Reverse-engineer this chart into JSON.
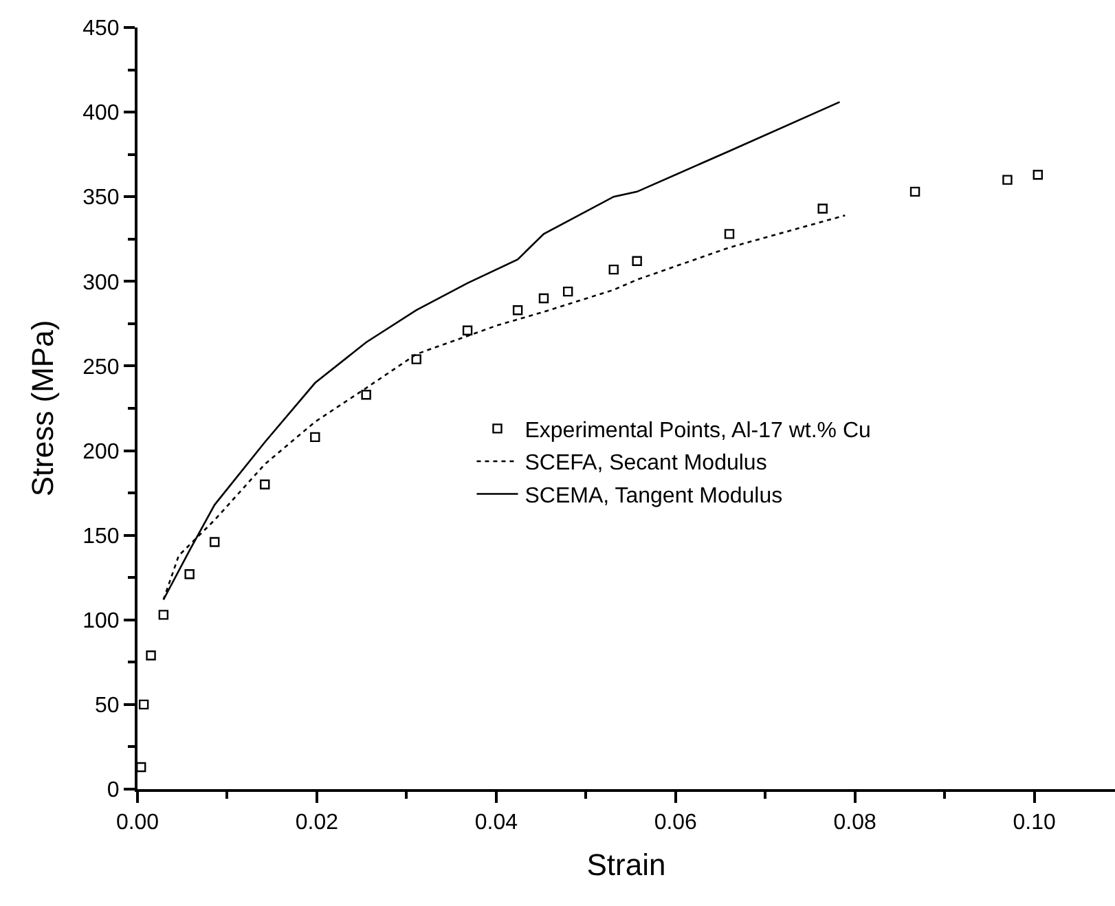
{
  "chart_data": {
    "type": "line",
    "xlabel": "Strain",
    "ylabel": "Stress (MPa)",
    "xlim": [
      0,
      0.109
    ],
    "ylim": [
      0,
      450
    ],
    "xticks": [
      {
        "value": 0,
        "label": "0.00"
      },
      {
        "value": 0.02,
        "label": "0.02"
      },
      {
        "value": 0.04,
        "label": "0.04"
      },
      {
        "value": 0.06,
        "label": "0.06"
      },
      {
        "value": 0.08,
        "label": "0.08"
      },
      {
        "value": 0.1,
        "label": "0.10"
      }
    ],
    "yticks": [
      0,
      50,
      100,
      150,
      200,
      250,
      300,
      350,
      400,
      450
    ],
    "legend": "right",
    "series": [
      {
        "name": "Experimental Points, Al-17 wt.% Cu",
        "type": "scatter",
        "marker": "square",
        "color": "#000000",
        "x": [
          0.0004,
          0.0007,
          0.0015,
          0.0029,
          0.0058,
          0.0086,
          0.0142,
          0.0198,
          0.0255,
          0.0311,
          0.0368,
          0.0424,
          0.0453,
          0.048,
          0.0531,
          0.0557,
          0.066,
          0.0764,
          0.0867,
          0.097,
          0.1004
        ],
        "values": [
          13,
          50,
          79,
          103,
          127,
          146,
          180,
          208,
          233,
          254,
          271,
          283,
          290,
          294,
          307,
          312,
          328,
          343,
          353,
          360,
          363
        ]
      },
      {
        "name": "SCEFA, Secant Modulus",
        "line_style": "dotted",
        "color": "#000000",
        "x": [
          0.0029,
          0.0046,
          0.0086,
          0.0142,
          0.0198,
          0.0255,
          0.0311,
          0.0401,
          0.0453,
          0.0531,
          0.0557,
          0.066,
          0.0789
        ],
        "values": [
          112,
          138,
          159,
          192,
          217,
          237,
          257,
          274,
          282,
          295,
          301,
          320,
          339
        ]
      },
      {
        "name": "SCEMA, Tangent Modulus",
        "line_style": "solid",
        "color": "#000000",
        "x": [
          0.0029,
          0.0058,
          0.0086,
          0.0142,
          0.0198,
          0.0255,
          0.0311,
          0.0368,
          0.0424,
          0.0453,
          0.0531,
          0.0557,
          0.066,
          0.0783
        ],
        "values": [
          112,
          141,
          168,
          205,
          240,
          264,
          283,
          299,
          313,
          328,
          350,
          353,
          377,
          406
        ]
      }
    ]
  }
}
